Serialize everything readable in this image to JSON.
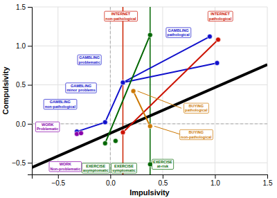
{
  "chart_data": {
    "type": "line",
    "xlabel": "Impulsivity",
    "ylabel": "Compulsivity",
    "xlim": [
      -0.75,
      1.5
    ],
    "ylim": [
      -0.65,
      1.5
    ],
    "xticks": [
      {
        "value": -0.5,
        "label": "−0.5"
      },
      {
        "value": 0,
        "label": "0.0"
      },
      0.5,
      {
        "value": 1,
        "label": "1.0"
      },
      1.5
    ],
    "yticks": [
      {
        "value": -0.5,
        "label": "−0.5"
      },
      {
        "value": 0,
        "label": "0.0"
      },
      0.5,
      {
        "value": 1,
        "label": "1.0"
      },
      1.5
    ],
    "grid": true,
    "reference_lines": [
      {
        "y": 0,
        "color": "#aaaaaa",
        "line_style": "dashed"
      },
      {
        "x": 0,
        "color": "#aaaaaa",
        "line_style": "dashed"
      },
      {
        "x": 0.12,
        "color": "#cc2200",
        "line_style": "solid"
      },
      {
        "x": 0.38,
        "color": "#006600",
        "line_style": "solid"
      }
    ],
    "series": [
      {
        "color": "black",
        "x": [
          -0.75,
          1.5
        ],
        "values": [
          -0.56,
          0.76
        ],
        "marker": "none",
        "line_style": "solid"
      },
      {
        "color": "#1111cc",
        "x": [
          -0.32,
          -0.05,
          0.12,
          0.95
        ],
        "values": [
          -0.1,
          0.02,
          0.53,
          1.12
        ],
        "marker": "circle",
        "line_style": "solid"
      },
      {
        "color": "#1111cc",
        "x": [
          0.12,
          1.02
        ],
        "values": [
          0.53,
          0.78
        ],
        "marker": "circle",
        "line_style": "solid"
      },
      {
        "color": "#cc1100",
        "x": [
          0.12,
          1.03
        ],
        "values": [
          -0.11,
          1.08
        ],
        "marker": "circle",
        "line_style": "solid"
      },
      {
        "color": "#006600",
        "x": [
          -0.05,
          0.38
        ],
        "values": [
          -0.25,
          1.14
        ],
        "marker": "circle",
        "line_style": "solid"
      },
      {
        "color": "#006600",
        "x": [
          0.05,
          0.38
        ],
        "values": [
          -0.22,
          -0.52
        ],
        "marker": "circle",
        "line_style": "none"
      },
      {
        "color": "#cc7700",
        "x": [
          0.22,
          0.38
        ],
        "values": [
          0.42,
          -0.03
        ],
        "marker": "circle",
        "line_style": "solid"
      },
      {
        "color": "#8800aa",
        "x": [
          -0.32,
          -0.28
        ],
        "values": [
          -0.13,
          -0.12
        ],
        "marker": "circle",
        "line_style": "solid"
      }
    ],
    "annotations": [
      {
        "text": "GAMBLING\nnon-pathological",
        "x": -0.48,
        "y": 0.25,
        "color": "#1111cc"
      },
      {
        "text": "GAMBLING\nminor problems",
        "x": -0.28,
        "y": 0.46,
        "color": "#1111cc"
      },
      {
        "text": "GAMBLING\nproblematic",
        "x": -0.2,
        "y": 0.82,
        "color": "#1111cc"
      },
      {
        "text": "GAMBLING\npathological",
        "x": 0.65,
        "y": 1.17,
        "color": "#1111cc"
      },
      {
        "text": "INTERNET\nnon-pathological",
        "x": 0.1,
        "y": 1.38,
        "color": "#cc1100"
      },
      {
        "text": "INTERNET\npathological",
        "x": 1.05,
        "y": 1.38,
        "color": "#cc1100"
      },
      {
        "text": "EXERCISE\nasymptomatic",
        "x": -0.14,
        "y": -0.57,
        "color": "#006600"
      },
      {
        "text": "EXERCISE\nsymptomatic",
        "x": 0.13,
        "y": -0.57,
        "color": "#006600"
      },
      {
        "text": "EXERCISE\nat-risk",
        "x": 0.5,
        "y": -0.52,
        "color": "#006600"
      },
      {
        "text": "BUYING\npathological",
        "x": 0.82,
        "y": 0.2,
        "color": "#cc7700",
        "leader": {
          "x": [
            0.68,
            0.26
          ],
          "y": [
            0.2,
            0.42
          ]
        }
      },
      {
        "text": "BUYING\nnon-pathological",
        "x": 0.82,
        "y": -0.14,
        "color": "#cc7700",
        "leader": {
          "x": [
            0.68,
            0.42
          ],
          "y": [
            -0.14,
            -0.03
          ]
        }
      },
      {
        "text": "WORK\nProblematic",
        "x": -0.6,
        "y": -0.04,
        "color": "#8800aa"
      },
      {
        "text": "WORK\nNon-problematic",
        "x": -0.43,
        "y": -0.55,
        "color": "#8800aa"
      }
    ]
  }
}
